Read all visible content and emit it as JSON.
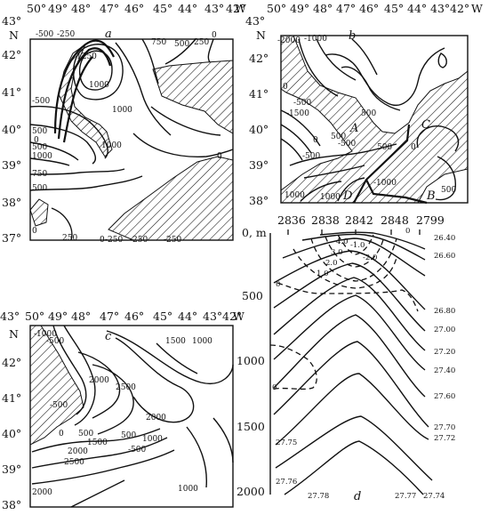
{
  "panels": {
    "a": {
      "label": "a",
      "top_axis": [
        "50°",
        "49°",
        "48°",
        "47°",
        "46°",
        "45°",
        "44°",
        "43°",
        "42°",
        "W"
      ],
      "left_axis": [
        "43°",
        "N",
        "42°",
        "41°",
        "40°",
        "39°",
        "38°",
        "37°"
      ],
      "contour_labels": [
        "-500",
        "-250",
        "1250",
        "1000",
        "750",
        "500",
        "250",
        "0",
        "1000",
        "-500",
        "500",
        "1000",
        "0",
        "500",
        "1000",
        "750",
        "500",
        "0",
        "250",
        "0",
        "-250",
        "-250",
        "-250",
        "0"
      ]
    },
    "b": {
      "label": "b",
      "top_axis": [
        "43°",
        "50°",
        "49°",
        "48°",
        "47°",
        "46°",
        "45°",
        "44°",
        "43°",
        "42°",
        "W"
      ],
      "left_axis": [
        "N",
        "42°",
        "41°",
        "40°",
        "39°",
        "38°"
      ],
      "contour_labels": [
        "-2000",
        "-1000",
        "0",
        "-500",
        "-1500",
        "500",
        "0",
        "500",
        "-500",
        "0",
        "500",
        "1000",
        "-1000",
        "-500",
        "500",
        "1000"
      ],
      "point_labels": [
        "A",
        "B",
        "C",
        "D"
      ]
    },
    "c": {
      "label": "c",
      "top_axis": [
        "43°",
        "50°",
        "49°",
        "48°",
        "47°",
        "46°",
        "45°",
        "44°",
        "43°",
        "42°",
        "W"
      ],
      "left_axis": [
        "N",
        "42°",
        "41°",
        "40°",
        "39°",
        "38°"
      ],
      "contour_labels": [
        "-1000",
        "-500",
        "1500",
        "1000",
        "2000",
        "2500",
        "2000",
        "-500",
        "0",
        "500",
        "1500",
        "2000",
        "2500",
        "1000",
        "-500",
        "2000",
        "1000",
        "500"
      ]
    },
    "d": {
      "label": "d",
      "stations": [
        "2836",
        "2838",
        "2842",
        "2848",
        "2799"
      ],
      "depth_unit": "0, m",
      "depth_ticks": [
        "500",
        "1000",
        "1500",
        "2000"
      ],
      "right_labels": [
        "26.40",
        "26.60",
        "26.80",
        "27.00",
        "27.20",
        "27.40",
        "27.60",
        "27.70",
        "27.72",
        "27.74"
      ],
      "bottom_labels": [
        "27.75",
        "27.76",
        "27.78",
        "27.77"
      ],
      "inner_labels": [
        "4.0",
        "3.0",
        "2.0",
        "1.0",
        "0",
        "0",
        "0",
        "-1.0",
        "-2.0"
      ]
    }
  }
}
